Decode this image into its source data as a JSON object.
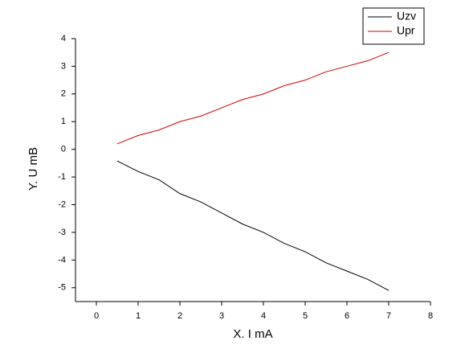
{
  "chart_data": {
    "type": "line",
    "xlabel": "X. I mA",
    "ylabel": "Y.  U mB",
    "x": [
      0.5,
      1,
      1.5,
      2,
      2.5,
      3,
      3.5,
      4,
      4.5,
      5,
      5.5,
      6,
      6.5,
      7
    ],
    "series": [
      {
        "name": "Uzv",
        "color": "#000000",
        "values": [
          -0.42,
          -0.8,
          -1.1,
          -1.6,
          -1.9,
          -2.3,
          -2.7,
          -3.0,
          -3.4,
          -3.7,
          -4.1,
          -4.4,
          -4.7,
          -5.1
        ]
      },
      {
        "name": "Upr",
        "color": "#cc0000",
        "values": [
          0.2,
          0.5,
          0.7,
          1.0,
          1.2,
          1.5,
          1.8,
          2.0,
          2.3,
          2.5,
          2.8,
          3.0,
          3.2,
          3.5
        ]
      }
    ],
    "xlim": [
      -0.5,
      8
    ],
    "ylim": [
      -5.5,
      4
    ],
    "xticks": [
      0,
      1,
      2,
      3,
      4,
      5,
      6,
      7,
      8
    ],
    "yticks": [
      -5,
      -4,
      -3,
      -2,
      -1,
      0,
      1,
      2,
      3,
      4
    ],
    "legend": "top-right"
  }
}
